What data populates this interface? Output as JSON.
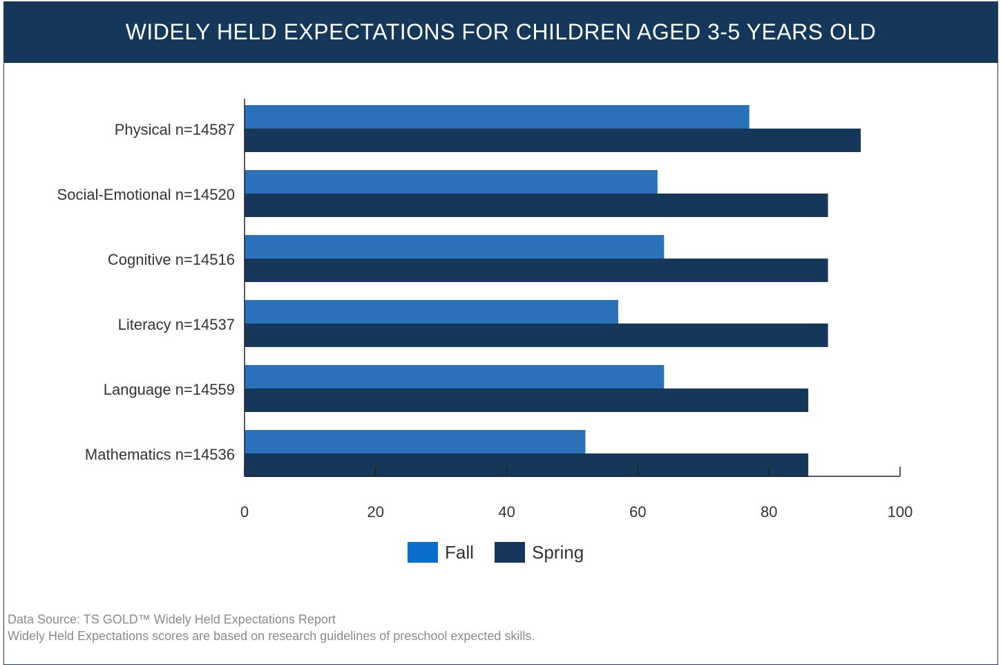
{
  "header": {
    "title": "WIDELY HELD EXPECTATIONS FOR CHILDREN AGED 3-5 YEARS OLD"
  },
  "chart_data": {
    "type": "bar",
    "orientation": "horizontal",
    "categories": [
      "Physical  n=14587",
      "Social-Emotional  n=14520",
      "Cognitive  n=14516",
      "Literacy  n=14537",
      "Language  n=14559",
      "Mathematics  n=14536"
    ],
    "series": [
      {
        "name": "Fall",
        "values": [
          77,
          63,
          64,
          57,
          64,
          52
        ],
        "color": "#2a71ba"
      },
      {
        "name": "Spring",
        "values": [
          94,
          89,
          89,
          89,
          86,
          86
        ],
        "color": "#15375a"
      }
    ],
    "xlim": [
      0,
      100
    ],
    "xticks": [
      0,
      20,
      40,
      60,
      80,
      100
    ],
    "grid": false,
    "legend_position": "bottom-center",
    "legend_fall_swatch_color": "#0a6fcb"
  },
  "footer": {
    "source": "Data Source: TS GOLD™ Widely Held Expectations Report",
    "note": "Widely Held Expectations scores are based on research guidelines of preschool expected skills."
  }
}
